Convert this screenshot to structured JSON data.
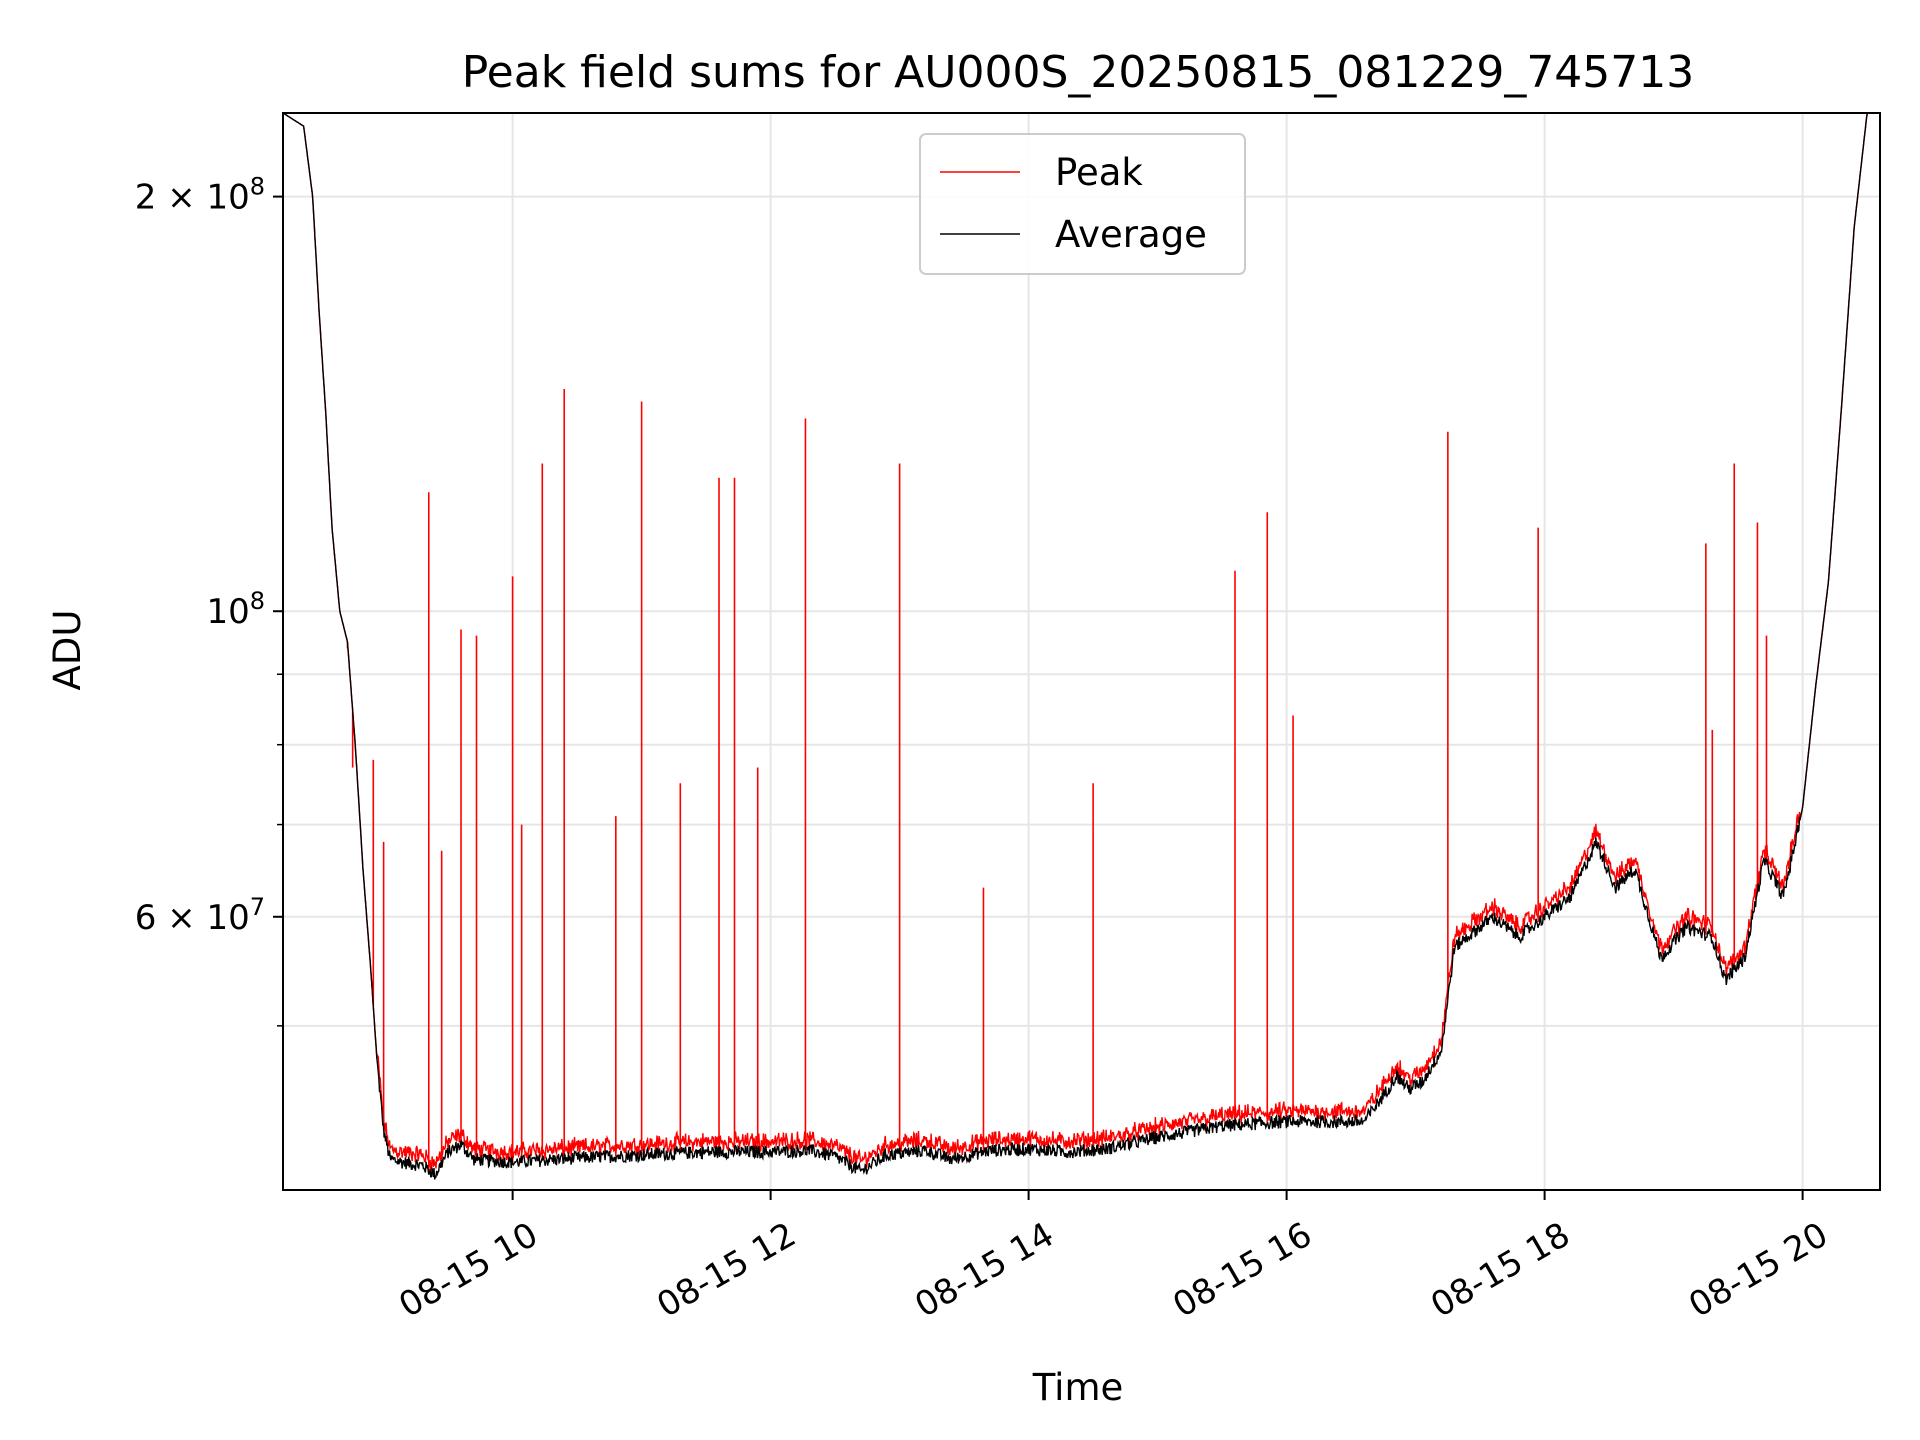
{
  "chart_data": {
    "type": "line",
    "title": "Peak field sums for AU000S_20250815_081229_745713",
    "xlabel": "Time",
    "ylabel": "ADU",
    "x_unit": "hours",
    "xlim": [
      8.22,
      20.6
    ],
    "ylim": [
      38000000,
      230000000
    ],
    "y_scale": "log",
    "grid": true,
    "legend_position": "top-center",
    "x_ticks": [
      {
        "value": 10,
        "label": "08-15 10"
      },
      {
        "value": 12,
        "label": "08-15 12"
      },
      {
        "value": 14,
        "label": "08-15 14"
      },
      {
        "value": 16,
        "label": "08-15 16"
      },
      {
        "value": 18,
        "label": "08-15 18"
      },
      {
        "value": 20,
        "label": "08-15 20"
      }
    ],
    "y_ticks_major": [
      {
        "value": 60000000,
        "label_mantissa": "6",
        "label_exp": "7"
      },
      {
        "value": 100000000,
        "label_mantissa": "",
        "label_exp": "8"
      },
      {
        "value": 200000000,
        "label_mantissa": "2",
        "label_exp": "8"
      }
    ],
    "y_ticks_minor": [
      50000000,
      70000000,
      80000000,
      90000000
    ],
    "series": [
      {
        "name": "Peak",
        "color": "#ff0000"
      },
      {
        "name": "Average",
        "color": "#000000"
      }
    ],
    "baseline_points": [
      [
        8.22,
        230000000
      ],
      [
        8.38,
        225000000
      ],
      [
        8.45,
        200000000
      ],
      [
        8.5,
        165000000
      ],
      [
        8.55,
        140000000
      ],
      [
        8.6,
        115000000
      ],
      [
        8.66,
        100000000
      ],
      [
        8.72,
        95000000
      ],
      [
        8.78,
        80000000
      ],
      [
        8.84,
        65000000
      ],
      [
        8.9,
        55000000
      ],
      [
        8.95,
        47000000
      ],
      [
        9.0,
        42000000
      ],
      [
        9.05,
        40000000
      ],
      [
        9.15,
        39800000
      ],
      [
        9.3,
        39600000
      ],
      [
        9.4,
        39000000
      ],
      [
        9.5,
        40500000
      ],
      [
        9.6,
        41000000
      ],
      [
        9.7,
        40000000
      ],
      [
        10.0,
        39800000
      ],
      [
        10.5,
        40100000
      ],
      [
        11.0,
        40300000
      ],
      [
        11.5,
        40500000
      ],
      [
        12.0,
        40500000
      ],
      [
        12.3,
        40600000
      ],
      [
        12.5,
        40200000
      ],
      [
        12.7,
        39200000
      ],
      [
        12.9,
        40300000
      ],
      [
        13.2,
        40600000
      ],
      [
        13.4,
        40000000
      ],
      [
        13.7,
        40600000
      ],
      [
        14.0,
        40700000
      ],
      [
        14.3,
        40500000
      ],
      [
        14.6,
        40700000
      ],
      [
        15.0,
        41500000
      ],
      [
        15.5,
        42300000
      ],
      [
        16.0,
        42600000
      ],
      [
        16.6,
        42600000
      ],
      [
        16.75,
        44500000
      ],
      [
        16.85,
        46000000
      ],
      [
        16.95,
        45000000
      ],
      [
        17.05,
        45500000
      ],
      [
        17.2,
        48000000
      ],
      [
        17.3,
        57000000
      ],
      [
        17.4,
        58000000
      ],
      [
        17.6,
        60000000
      ],
      [
        17.8,
        58000000
      ],
      [
        18.0,
        60000000
      ],
      [
        18.2,
        62000000
      ],
      [
        18.4,
        68000000
      ],
      [
        18.55,
        63000000
      ],
      [
        18.7,
        65000000
      ],
      [
        18.9,
        56000000
      ],
      [
        19.1,
        59000000
      ],
      [
        19.3,
        58000000
      ],
      [
        19.4,
        54000000
      ],
      [
        19.55,
        56000000
      ],
      [
        19.7,
        66000000
      ],
      [
        19.85,
        62000000
      ],
      [
        20.0,
        72000000
      ],
      [
        20.1,
        88000000
      ],
      [
        20.2,
        105000000
      ],
      [
        20.3,
        140000000
      ],
      [
        20.4,
        190000000
      ],
      [
        20.5,
        230000000
      ],
      [
        20.6,
        230000000
      ]
    ],
    "peak_spikes": [
      [
        8.62,
        110000000
      ],
      [
        8.72,
        94000000
      ],
      [
        8.76,
        77000000
      ],
      [
        8.92,
        78000000
      ],
      [
        9.0,
        68000000
      ],
      [
        9.35,
        122000000
      ],
      [
        9.45,
        67000000
      ],
      [
        9.6,
        97000000
      ],
      [
        9.72,
        96000000
      ],
      [
        10.0,
        106000000
      ],
      [
        10.07,
        70000000
      ],
      [
        10.23,
        128000000
      ],
      [
        10.4,
        145000000
      ],
      [
        10.8,
        71000000
      ],
      [
        11.0,
        142000000
      ],
      [
        11.3,
        75000000
      ],
      [
        11.6,
        125000000
      ],
      [
        11.72,
        125000000
      ],
      [
        11.9,
        77000000
      ],
      [
        12.27,
        138000000
      ],
      [
        13.0,
        128000000
      ],
      [
        13.65,
        63000000
      ],
      [
        14.5,
        75000000
      ],
      [
        15.6,
        107000000
      ],
      [
        15.85,
        118000000
      ],
      [
        16.05,
        84000000
      ],
      [
        17.25,
        135000000
      ],
      [
        17.95,
        115000000
      ],
      [
        19.25,
        112000000
      ],
      [
        19.3,
        82000000
      ],
      [
        19.47,
        128000000
      ],
      [
        19.65,
        116000000
      ],
      [
        19.72,
        96000000
      ]
    ]
  }
}
